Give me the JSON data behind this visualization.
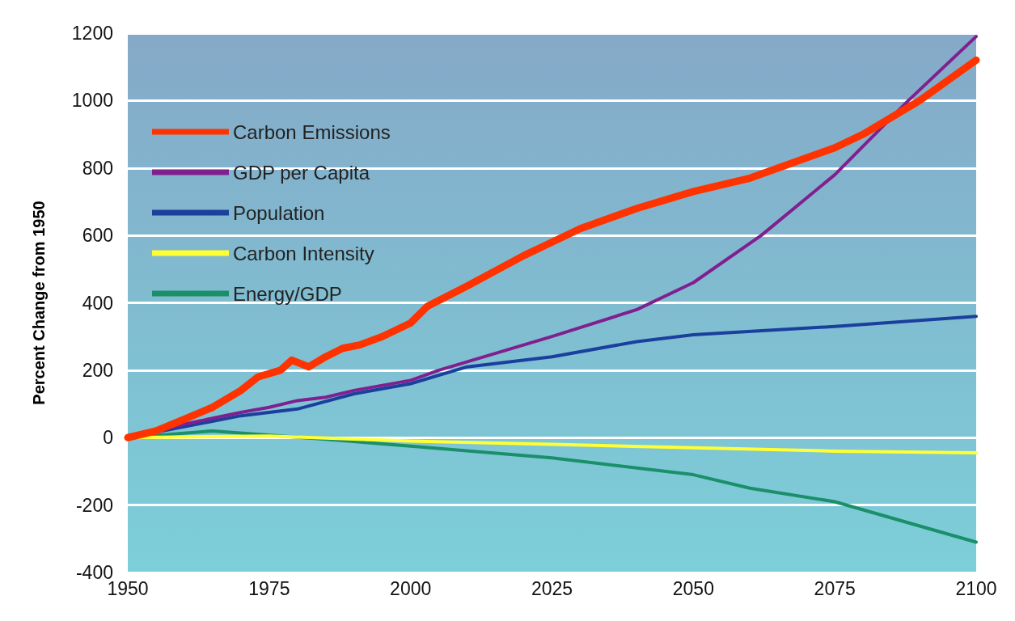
{
  "chart_data": {
    "type": "line",
    "ylabel": "Percent Change from 1950",
    "xlim": [
      1950,
      2100
    ],
    "xticks": [
      1950,
      1975,
      2000,
      2025,
      2050,
      2075,
      2100
    ],
    "ylim": [
      -400,
      1200
    ],
    "yticks": [
      -400,
      -200,
      0,
      200,
      400,
      600,
      800,
      1000,
      1200
    ],
    "grid": "y",
    "legend": "top left",
    "marker": "none",
    "line_style": "solid",
    "series": [
      {
        "name": "Carbon Emissions",
        "color": "#ff3300",
        "x": [
          1950,
          1955,
          1960,
          1965,
          1970,
          1973,
          1977,
          1979,
          1982,
          1985,
          1988,
          1991,
          1995,
          2000,
          2003,
          2010,
          2020,
          2025,
          2030,
          2040,
          2050,
          2060,
          2065,
          2075,
          2080,
          2090,
          2100
        ],
        "values": [
          0,
          20,
          55,
          90,
          140,
          180,
          200,
          230,
          210,
          240,
          265,
          275,
          300,
          340,
          390,
          450,
          540,
          580,
          620,
          680,
          730,
          770,
          800,
          860,
          900,
          1000,
          1120
        ]
      },
      {
        "name": "GDP per Capita",
        "color": "#80208f",
        "x": [
          1950,
          1960,
          1970,
          1975,
          1980,
          1985,
          1990,
          2000,
          2005,
          2025,
          2040,
          2050,
          2062,
          2075,
          2088,
          2100
        ],
        "values": [
          0,
          40,
          75,
          90,
          110,
          120,
          140,
          170,
          200,
          300,
          380,
          460,
          600,
          780,
          1000,
          1190
        ]
      },
      {
        "name": "Population",
        "color": "#1a3f9c",
        "x": [
          1950,
          1970,
          1980,
          1990,
          2000,
          2010,
          2025,
          2040,
          2050,
          2075,
          2100
        ],
        "values": [
          0,
          65,
          85,
          130,
          160,
          210,
          240,
          285,
          305,
          330,
          360
        ]
      },
      {
        "name": "Carbon Intensity",
        "color": "#ffff33",
        "x": [
          1950,
          1975,
          2000,
          2025,
          2050,
          2075,
          2100
        ],
        "values": [
          0,
          5,
          -10,
          -20,
          -30,
          -40,
          -45
        ]
      },
      {
        "name": "Energy/GDP",
        "color": "#1a8f6a",
        "x": [
          1950,
          1965,
          1985,
          2000,
          2025,
          2050,
          2060,
          2075,
          2100
        ],
        "values": [
          0,
          20,
          -5,
          -25,
          -60,
          -110,
          -150,
          -190,
          -310
        ]
      }
    ]
  }
}
